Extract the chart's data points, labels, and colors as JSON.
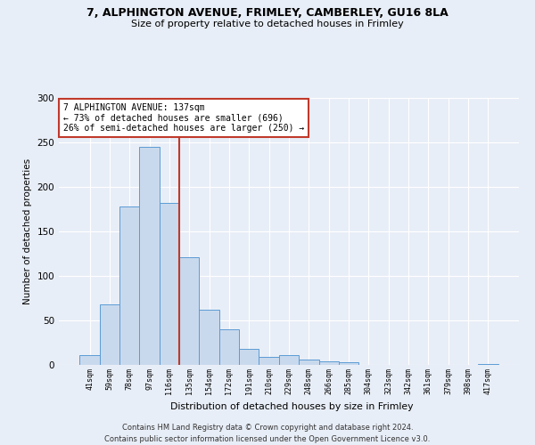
{
  "title1": "7, ALPHINGTON AVENUE, FRIMLEY, CAMBERLEY, GU16 8LA",
  "title2": "Size of property relative to detached houses in Frimley",
  "xlabel": "Distribution of detached houses by size in Frimley",
  "ylabel": "Number of detached properties",
  "bar_color": "#c9d9ed",
  "bar_edge_color": "#5b9bd5",
  "categories": [
    "41sqm",
    "59sqm",
    "78sqm",
    "97sqm",
    "116sqm",
    "135sqm",
    "154sqm",
    "172sqm",
    "191sqm",
    "210sqm",
    "229sqm",
    "248sqm",
    "266sqm",
    "285sqm",
    "304sqm",
    "323sqm",
    "342sqm",
    "361sqm",
    "379sqm",
    "398sqm",
    "417sqm"
  ],
  "values": [
    11,
    68,
    178,
    245,
    182,
    121,
    62,
    40,
    18,
    9,
    11,
    6,
    4,
    3,
    0,
    0,
    0,
    0,
    0,
    0,
    1
  ],
  "vline_x": 4.5,
  "vline_color": "#c0392b",
  "annotation_text": "7 ALPHINGTON AVENUE: 137sqm\n← 73% of detached houses are smaller (696)\n26% of semi-detached houses are larger (250) →",
  "annotation_box_color": "#ffffff",
  "annotation_box_edge": "#c0392b",
  "ylim": [
    0,
    300
  ],
  "yticks": [
    0,
    50,
    100,
    150,
    200,
    250,
    300
  ],
  "footer1": "Contains HM Land Registry data © Crown copyright and database right 2024.",
  "footer2": "Contains public sector information licensed under the Open Government Licence v3.0.",
  "bg_color": "#e8eef7",
  "plot_bg_color": "#e8eef7"
}
